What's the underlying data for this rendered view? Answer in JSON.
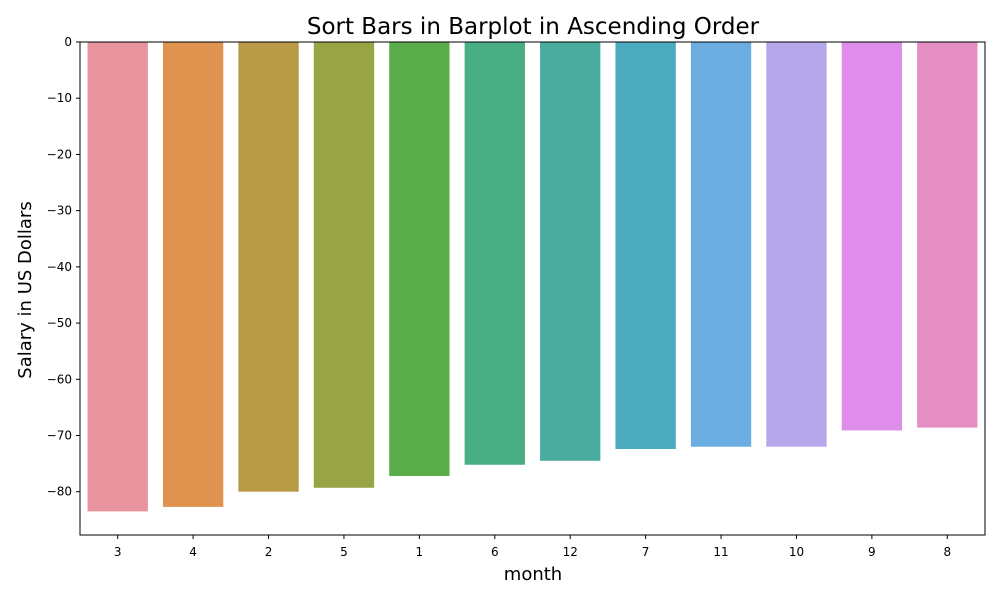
{
  "chart_data": {
    "type": "bar",
    "title": "Sort Bars in Barplot in Ascending Order",
    "xlabel": "month",
    "ylabel": "Salary in US Dollars",
    "categories": [
      "3",
      "4",
      "2",
      "5",
      "1",
      "6",
      "12",
      "7",
      "11",
      "10",
      "9",
      "8"
    ],
    "values": [
      -83.5,
      -82.7,
      -80.0,
      -79.3,
      -77.2,
      -75.2,
      -74.5,
      -72.4,
      -72.0,
      -72.0,
      -69.1,
      -68.6
    ],
    "colors": [
      "#e8949f",
      "#e0924f",
      "#b89a47",
      "#98a445",
      "#5aad48",
      "#49ae84",
      "#4aab9f",
      "#4baabd",
      "#6bade1",
      "#b6a6ea",
      "#de8deb",
      "#e68fc3"
    ],
    "ylim": [
      -87.7,
      0
    ],
    "yticks": [
      0,
      -10,
      -20,
      -30,
      -40,
      -50,
      -60,
      -70,
      -80
    ],
    "grid": false,
    "legend": "none"
  }
}
